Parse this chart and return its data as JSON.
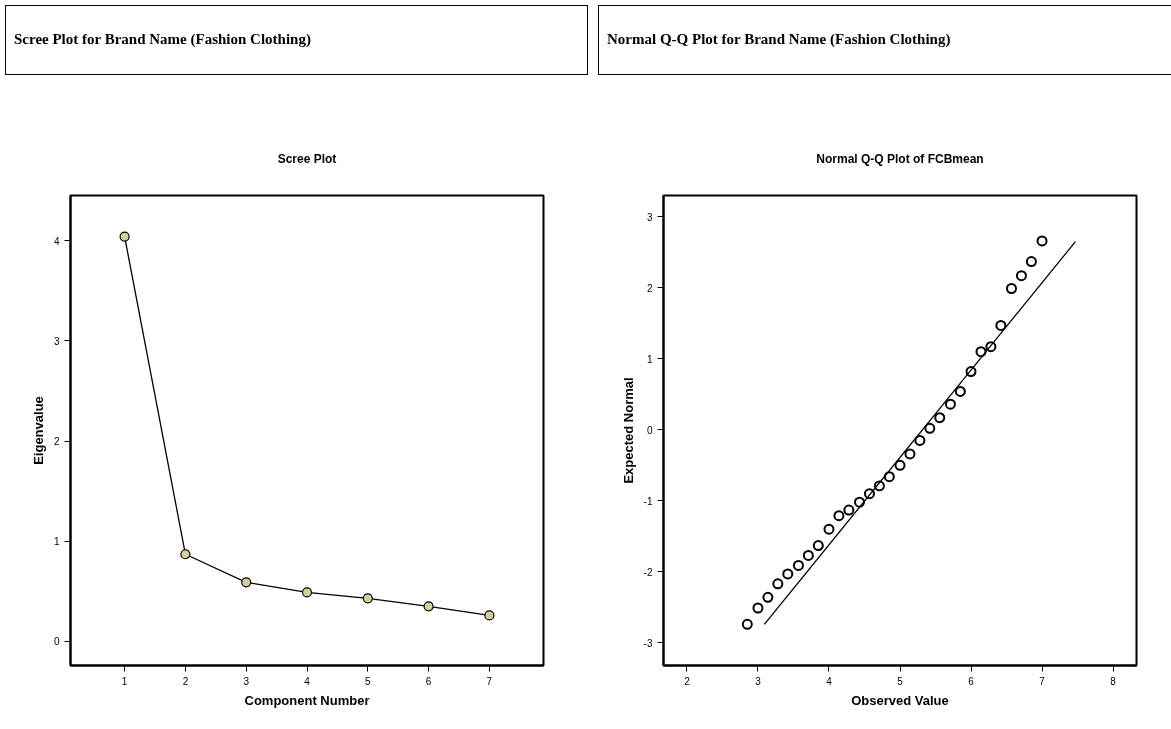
{
  "chart_data": [
    {
      "type": "line",
      "title": "Scree Plot for Brand Name (Fashion Clothing)",
      "subtitle": "Scree Plot",
      "xlabel": "Component Number",
      "ylabel": "Eigenvalue",
      "marker": "circle",
      "x": [
        1,
        2,
        3,
        4,
        5,
        6,
        7
      ],
      "series": [
        {
          "color": "#d6cf9c",
          "values": [
            4.04,
            0.87,
            0.59,
            0.49,
            0.43,
            0.35,
            0.26
          ]
        }
      ],
      "xlim": [
        0.11,
        7.89
      ],
      "ylim": [
        -0.24,
        4.45
      ],
      "xticks": [
        1,
        2,
        3,
        4,
        5,
        6,
        7
      ],
      "yticks": [
        0,
        1,
        2,
        3,
        4
      ]
    },
    {
      "type": "scatter",
      "title": "Normal Q-Q Plot for Brand Name (Fashion Clothing)",
      "subtitle": "Normal Q-Q Plot of FCBmean",
      "xlabel": "Observed Value",
      "ylabel": "Expected Normal",
      "series": [
        {
          "type": "scatter",
          "marker": "circle",
          "color": "#000000",
          "x": [
            2.85,
            3.0,
            3.14,
            3.28,
            3.42,
            3.57,
            3.71,
            3.85,
            4.0,
            4.14,
            4.28,
            4.43,
            4.57,
            4.71,
            4.85,
            5.0,
            5.14,
            5.28,
            5.42,
            5.56,
            5.71,
            5.85,
            6.0,
            6.14,
            6.28,
            6.42,
            6.57,
            6.71,
            6.85,
            7.0
          ],
          "values": [
            -2.74,
            -2.51,
            -2.36,
            -2.17,
            -2.03,
            -1.91,
            -1.77,
            -1.63,
            -1.4,
            -1.21,
            -1.13,
            -1.02,
            -0.9,
            -0.79,
            -0.66,
            -0.5,
            -0.34,
            -0.15,
            0.02,
            0.17,
            0.36,
            0.54,
            0.82,
            1.1,
            1.17,
            1.47,
            1.99,
            2.17,
            2.37,
            2.66
          ]
        },
        {
          "type": "line",
          "marker": "none",
          "color": "#000000",
          "x": [
            3.09,
            7.47
          ],
          "values": [
            -2.74,
            2.65
          ]
        }
      ],
      "xlim": [
        1.67,
        8.33
      ],
      "ylim": [
        -3.32,
        3.3
      ],
      "xticks": [
        2,
        3,
        4,
        5,
        6,
        7,
        8
      ],
      "yticks": [
        -3,
        -2,
        -1,
        0,
        1,
        2,
        3
      ]
    }
  ]
}
